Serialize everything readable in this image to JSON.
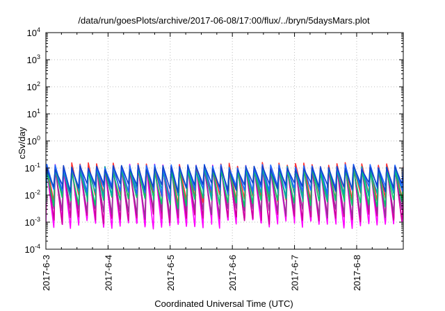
{
  "chart_data": {
    "type": "line",
    "title": "/data/run/goesPlots/archive/2017-06-08/17:00/flux/../bryn/5daysMars.plot",
    "xlabel": "Coordinated Universal Time (UTC)",
    "ylabel": "cSv/day",
    "yscale": "log",
    "ylim": [
      0.0001,
      10000
    ],
    "ytick_base": "10",
    "ytick_exponents": [
      "-4",
      "-3",
      "-2",
      "-1",
      "0",
      "1",
      "2",
      "3",
      "4"
    ],
    "xlim": [
      "2017-06-03",
      "2017-06-08T18:00"
    ],
    "xtick_labels": [
      "2017-6-3",
      "2017-6-4",
      "2017-6-5",
      "2017-6-6",
      "2017-6-7",
      "2017-6-8"
    ],
    "grid": true,
    "legend": "none",
    "sawtooth_period_hours": 3.2,
    "series": [
      {
        "color": "#ff00ff",
        "peak": 0.12,
        "trough": 0.0009
      },
      {
        "color": "#cc0099",
        "peak": 0.11,
        "trough": 0.0014
      },
      {
        "color": "#993399",
        "peak": 0.1,
        "trough": 0.0022
      },
      {
        "color": "#ff3333",
        "peak": 0.14,
        "trough": 0.008
      },
      {
        "color": "#00cc66",
        "peak": 0.09,
        "trough": 0.006
      },
      {
        "color": "#00aaaa",
        "peak": 0.1,
        "trough": 0.012
      },
      {
        "color": "#2266ff",
        "peak": 0.12,
        "trough": 0.015
      },
      {
        "color": "#1144cc",
        "peak": 0.11,
        "trough": 0.02
      }
    ]
  }
}
